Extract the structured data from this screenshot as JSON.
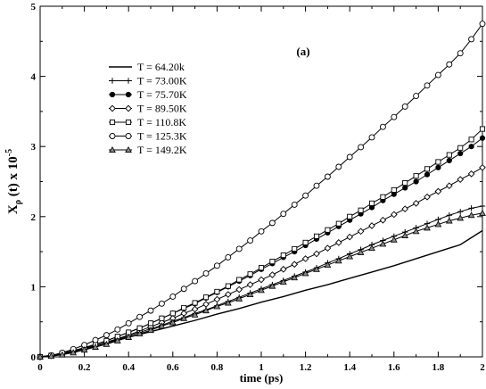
{
  "chart_data": {
    "type": "line",
    "annotation": "(a)",
    "xlabel": "time (ps)",
    "ylabel_main": "X",
    "ylabel_sub": "ρ",
    "ylabel_rest": " (t) x 10",
    "ylabel_sup": "-5",
    "xlim": [
      0,
      2
    ],
    "ylim": [
      0,
      5
    ],
    "x_ticks": [
      "0",
      "0.2",
      "0.4",
      "0.6",
      "0.8",
      "1",
      "1.2",
      "1.4",
      "1.6",
      "1.8",
      "2"
    ],
    "y_ticks": [
      "0",
      "1",
      "2",
      "3",
      "4",
      "5"
    ],
    "grid": false,
    "legend_position": "top-left",
    "series": [
      {
        "name": "T = 64.20k",
        "marker": "none",
        "x": [
          0,
          0.05,
          0.1,
          0.2,
          0.3,
          0.4,
          0.5,
          0.6,
          0.7,
          0.8,
          0.9,
          1.0,
          1.1,
          1.2,
          1.3,
          1.4,
          1.5,
          1.6,
          1.7,
          1.8,
          1.9,
          2.0
        ],
        "y": [
          0,
          0.02,
          0.05,
          0.12,
          0.2,
          0.28,
          0.36,
          0.44,
          0.52,
          0.61,
          0.69,
          0.78,
          0.86,
          0.95,
          1.03,
          1.12,
          1.21,
          1.3,
          1.4,
          1.5,
          1.6,
          1.8
        ]
      },
      {
        "name": "T = 73.00K",
        "marker": "plus",
        "x": [
          0,
          0.05,
          0.1,
          0.15,
          0.2,
          0.25,
          0.3,
          0.35,
          0.4,
          0.45,
          0.5,
          0.55,
          0.6,
          0.65,
          0.7,
          0.75,
          0.8,
          0.85,
          0.9,
          0.95,
          1.0,
          1.05,
          1.1,
          1.15,
          1.2,
          1.25,
          1.3,
          1.35,
          1.4,
          1.45,
          1.5,
          1.55,
          1.6,
          1.65,
          1.7,
          1.75,
          1.8,
          1.85,
          1.9,
          1.95,
          2.0
        ],
        "y": [
          0,
          0.01,
          0.04,
          0.07,
          0.11,
          0.15,
          0.2,
          0.25,
          0.3,
          0.35,
          0.4,
          0.45,
          0.51,
          0.56,
          0.62,
          0.67,
          0.73,
          0.79,
          0.85,
          0.91,
          0.97,
          1.03,
          1.09,
          1.15,
          1.21,
          1.27,
          1.34,
          1.4,
          1.47,
          1.53,
          1.6,
          1.66,
          1.72,
          1.78,
          1.84,
          1.9,
          1.96,
          2.02,
          2.07,
          2.12,
          2.15
        ]
      },
      {
        "name": "T = 75.70K",
        "marker": "filled-circle",
        "x": [
          0,
          0.05,
          0.1,
          0.15,
          0.2,
          0.25,
          0.3,
          0.35,
          0.4,
          0.45,
          0.5,
          0.55,
          0.6,
          0.65,
          0.7,
          0.75,
          0.8,
          0.85,
          0.9,
          0.95,
          1.0,
          1.05,
          1.1,
          1.15,
          1.2,
          1.25,
          1.3,
          1.35,
          1.4,
          1.45,
          1.5,
          1.55,
          1.6,
          1.65,
          1.7,
          1.75,
          1.8,
          1.85,
          1.9,
          1.95,
          2.0
        ],
        "y": [
          0,
          0.02,
          0.05,
          0.09,
          0.13,
          0.18,
          0.23,
          0.29,
          0.35,
          0.41,
          0.48,
          0.55,
          0.62,
          0.69,
          0.76,
          0.84,
          0.92,
          1.0,
          1.08,
          1.16,
          1.25,
          1.33,
          1.42,
          1.5,
          1.59,
          1.68,
          1.77,
          1.86,
          1.95,
          2.04,
          2.13,
          2.23,
          2.32,
          2.41,
          2.5,
          2.6,
          2.7,
          2.8,
          2.9,
          3.0,
          3.12
        ]
      },
      {
        "name": "T = 89.50K",
        "marker": "diamond",
        "x": [
          0,
          0.05,
          0.1,
          0.15,
          0.2,
          0.25,
          0.3,
          0.35,
          0.4,
          0.45,
          0.5,
          0.55,
          0.6,
          0.65,
          0.7,
          0.75,
          0.8,
          0.85,
          0.9,
          0.95,
          1.0,
          1.05,
          1.1,
          1.15,
          1.2,
          1.25,
          1.3,
          1.35,
          1.4,
          1.45,
          1.5,
          1.55,
          1.6,
          1.65,
          1.7,
          1.75,
          1.8,
          1.85,
          1.9,
          1.95,
          2.0
        ],
        "y": [
          0,
          0.02,
          0.05,
          0.08,
          0.12,
          0.16,
          0.21,
          0.26,
          0.31,
          0.37,
          0.43,
          0.49,
          0.55,
          0.62,
          0.68,
          0.75,
          0.82,
          0.89,
          0.96,
          1.03,
          1.1,
          1.17,
          1.25,
          1.32,
          1.4,
          1.47,
          1.55,
          1.63,
          1.71,
          1.79,
          1.87,
          1.95,
          2.03,
          2.11,
          2.19,
          2.28,
          2.36,
          2.44,
          2.53,
          2.61,
          2.7
        ]
      },
      {
        "name": "T = 110.8K",
        "marker": "square",
        "x": [
          0,
          0.05,
          0.1,
          0.15,
          0.2,
          0.25,
          0.3,
          0.35,
          0.4,
          0.45,
          0.5,
          0.55,
          0.6,
          0.65,
          0.7,
          0.75,
          0.8,
          0.85,
          0.9,
          0.95,
          1.0,
          1.05,
          1.1,
          1.15,
          1.2,
          1.25,
          1.3,
          1.35,
          1.4,
          1.45,
          1.5,
          1.55,
          1.6,
          1.65,
          1.7,
          1.75,
          1.8,
          1.85,
          1.9,
          1.95,
          2.0
        ],
        "y": [
          0,
          0.02,
          0.05,
          0.09,
          0.13,
          0.18,
          0.23,
          0.29,
          0.35,
          0.41,
          0.48,
          0.55,
          0.62,
          0.7,
          0.77,
          0.85,
          0.93,
          1.01,
          1.1,
          1.18,
          1.27,
          1.36,
          1.45,
          1.54,
          1.63,
          1.72,
          1.81,
          1.9,
          2.0,
          2.09,
          2.19,
          2.28,
          2.38,
          2.48,
          2.58,
          2.68,
          2.78,
          2.88,
          2.98,
          3.1,
          3.25
        ]
      },
      {
        "name": "T = 125.3K",
        "marker": "circle",
        "x": [
          0,
          0.05,
          0.1,
          0.15,
          0.2,
          0.25,
          0.3,
          0.35,
          0.4,
          0.45,
          0.5,
          0.55,
          0.6,
          0.65,
          0.7,
          0.75,
          0.8,
          0.85,
          0.9,
          0.95,
          1.0,
          1.05,
          1.1,
          1.15,
          1.2,
          1.25,
          1.3,
          1.35,
          1.4,
          1.45,
          1.5,
          1.55,
          1.6,
          1.65,
          1.7,
          1.75,
          1.8,
          1.85,
          1.9,
          1.95,
          2.0
        ],
        "y": [
          0,
          0.02,
          0.06,
          0.11,
          0.17,
          0.24,
          0.31,
          0.39,
          0.48,
          0.57,
          0.66,
          0.76,
          0.86,
          0.97,
          1.08,
          1.19,
          1.3,
          1.42,
          1.54,
          1.66,
          1.79,
          1.91,
          2.04,
          2.17,
          2.3,
          2.44,
          2.57,
          2.71,
          2.85,
          2.99,
          3.13,
          3.28,
          3.42,
          3.57,
          3.72,
          3.87,
          4.02,
          4.17,
          4.33,
          4.53,
          4.75
        ]
      },
      {
        "name": "T = 149.2K",
        "marker": "triangle",
        "x": [
          0,
          0.05,
          0.1,
          0.15,
          0.2,
          0.25,
          0.3,
          0.35,
          0.4,
          0.45,
          0.5,
          0.55,
          0.6,
          0.65,
          0.7,
          0.75,
          0.8,
          0.85,
          0.9,
          0.95,
          1.0,
          1.05,
          1.1,
          1.15,
          1.2,
          1.25,
          1.3,
          1.35,
          1.4,
          1.45,
          1.5,
          1.55,
          1.6,
          1.65,
          1.7,
          1.75,
          1.8,
          1.85,
          1.9,
          1.95,
          2.0
        ],
        "y": [
          0,
          0.01,
          0.03,
          0.06,
          0.1,
          0.14,
          0.18,
          0.23,
          0.28,
          0.33,
          0.38,
          0.44,
          0.49,
          0.55,
          0.6,
          0.66,
          0.72,
          0.77,
          0.83,
          0.89,
          0.95,
          1.01,
          1.07,
          1.13,
          1.19,
          1.25,
          1.31,
          1.37,
          1.43,
          1.49,
          1.55,
          1.61,
          1.67,
          1.73,
          1.79,
          1.84,
          1.89,
          1.94,
          1.98,
          2.02,
          2.05
        ]
      }
    ]
  }
}
